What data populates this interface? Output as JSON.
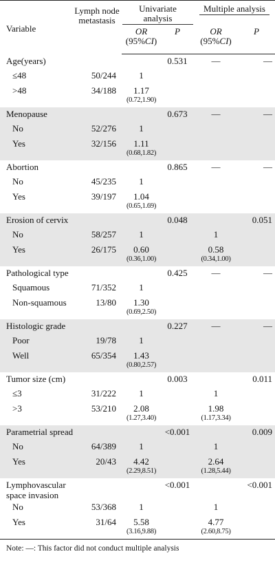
{
  "header": {
    "variable": "Variable",
    "lymph": "Lymph node metastasis",
    "univariate": "Univariate analysis",
    "multiple": "Multiple analysis",
    "or_label": "OR",
    "ci_open": "(95%",
    "ci_label": "CI",
    "ci_close": ")",
    "p_label": "P"
  },
  "factors": [
    {
      "name": "Age(years)",
      "p_uni": "0.531",
      "p_multi": "—",
      "or_multi_marker": "—",
      "levels": [
        {
          "name": "≤48",
          "frac": "50/244",
          "or_uni": "1",
          "ci_uni": "",
          "or_multi": "",
          "ci_multi": ""
        },
        {
          "name": ">48",
          "frac": "34/188",
          "or_uni": "1.17",
          "ci_uni": "(0.72,1.90)",
          "or_multi": "",
          "ci_multi": ""
        }
      ]
    },
    {
      "name": "Menopause",
      "p_uni": "0.673",
      "p_multi": "—",
      "or_multi_marker": "—",
      "levels": [
        {
          "name": "No",
          "frac": "52/276",
          "or_uni": "1",
          "ci_uni": "",
          "or_multi": "",
          "ci_multi": ""
        },
        {
          "name": "Yes",
          "frac": "32/156",
          "or_uni": "1.11",
          "ci_uni": "(0.68,1.82)",
          "or_multi": "",
          "ci_multi": ""
        }
      ]
    },
    {
      "name": "Abortion",
      "p_uni": "0.865",
      "p_multi": "—",
      "or_multi_marker": "—",
      "levels": [
        {
          "name": "No",
          "frac": "45/235",
          "or_uni": "1",
          "ci_uni": "",
          "or_multi": "",
          "ci_multi": ""
        },
        {
          "name": "Yes",
          "frac": "39/197",
          "or_uni": "1.04",
          "ci_uni": "(0.65,1.69)",
          "or_multi": "",
          "ci_multi": ""
        }
      ]
    },
    {
      "name": "Erosion of cervix",
      "p_uni": "0.048",
      "p_multi": "0.051",
      "or_multi_marker": "",
      "levels": [
        {
          "name": "No",
          "frac": "58/257",
          "or_uni": "1",
          "ci_uni": "",
          "or_multi": "1",
          "ci_multi": ""
        },
        {
          "name": "Yes",
          "frac": "26/175",
          "or_uni": "0.60",
          "ci_uni": "(0.36,1.00)",
          "or_multi": "0.58",
          "ci_multi": "(0.34,1.00)"
        }
      ]
    },
    {
      "name": "Pathological type",
      "p_uni": "0.425",
      "p_multi": "—",
      "or_multi_marker": "—",
      "levels": [
        {
          "name": "Squamous",
          "frac": "71/352",
          "or_uni": "1",
          "ci_uni": "",
          "or_multi": "",
          "ci_multi": ""
        },
        {
          "name": "Non-squamous",
          "frac": "13/80",
          "or_uni": "1.30",
          "ci_uni": "(0.69,2.50)",
          "or_multi": "",
          "ci_multi": ""
        }
      ]
    },
    {
      "name": "Histologic grade",
      "p_uni": "0.227",
      "p_multi": "—",
      "or_multi_marker": "—",
      "levels": [
        {
          "name": "Poor",
          "frac": "19/78",
          "or_uni": "1",
          "ci_uni": "",
          "or_multi": "",
          "ci_multi": ""
        },
        {
          "name": "Well",
          "frac": "65/354",
          "or_uni": "1.43",
          "ci_uni": "(0.80,2.57)",
          "or_multi": "",
          "ci_multi": ""
        }
      ]
    },
    {
      "name": "Tumor size (cm)",
      "p_uni": "0.003",
      "p_multi": "0.011",
      "or_multi_marker": "",
      "levels": [
        {
          "name": "≤3",
          "frac": "31/222",
          "or_uni": "1",
          "ci_uni": "",
          "or_multi": "1",
          "ci_multi": ""
        },
        {
          "name": ">3",
          "frac": "53/210",
          "or_uni": "2.08",
          "ci_uni": "(1.27,3.40)",
          "or_multi": "1.98",
          "ci_multi": "(1.17,3.34)"
        }
      ]
    },
    {
      "name": "Parametrial spread",
      "p_uni": "<0.001",
      "p_multi": "0.009",
      "or_multi_marker": "",
      "levels": [
        {
          "name": "No",
          "frac": "64/389",
          "or_uni": "1",
          "ci_uni": "",
          "or_multi": "1",
          "ci_multi": ""
        },
        {
          "name": "Yes",
          "frac": "20/43",
          "or_uni": "4.42",
          "ci_uni": "(2.29,8.51)",
          "or_multi": "2.64",
          "ci_multi": "(1.28,5.44)"
        }
      ]
    },
    {
      "name": "Lymphovascular space invasion",
      "p_uni": "<0.001",
      "p_multi": "<0.001",
      "or_multi_marker": "",
      "levels": [
        {
          "name": "No",
          "frac": "53/368",
          "or_uni": "1",
          "ci_uni": "",
          "or_multi": "1",
          "ci_multi": ""
        },
        {
          "name": "Yes",
          "frac": "31/64",
          "or_uni": "5.58",
          "ci_uni": "(3.16,9.88)",
          "or_multi": "4.77",
          "ci_multi": "(2.60,8.75)"
        }
      ]
    }
  ],
  "note": "Note: —: This factor did not conduct multiple analysis"
}
